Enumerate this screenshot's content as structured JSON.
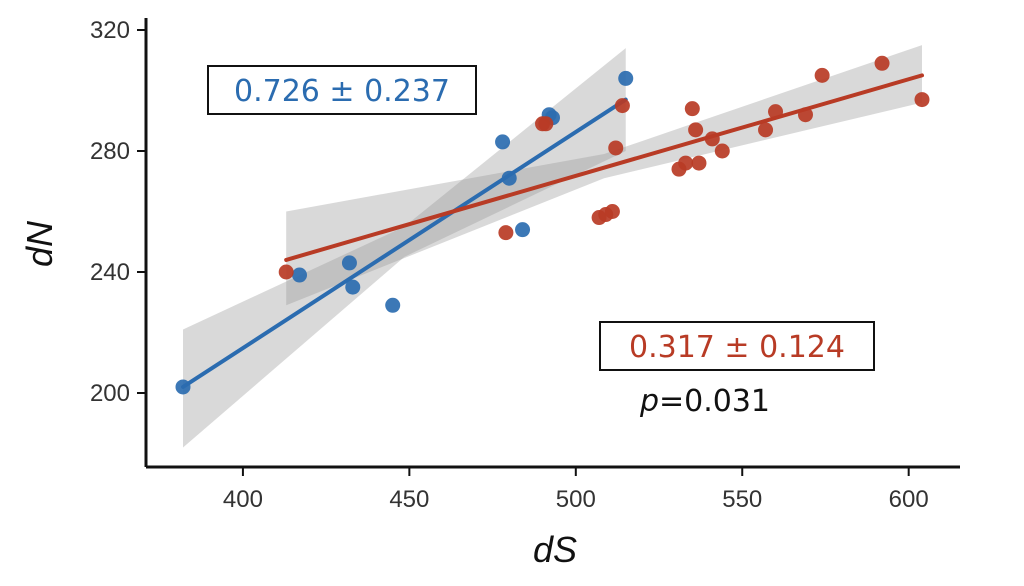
{
  "chart_data": {
    "type": "scatter",
    "xlabel": "dS",
    "ylabel": "dN",
    "xlim": [
      372,
      612
    ],
    "ylim": [
      178,
      326
    ],
    "xticks": [
      400,
      450,
      500,
      550,
      600
    ],
    "yticks": [
      200,
      240,
      280,
      320
    ],
    "grid": false,
    "series": [
      {
        "color": "#2b6cb0",
        "points": [
          [
            382,
            202
          ],
          [
            417,
            239
          ],
          [
            432,
            243
          ],
          [
            433,
            235
          ],
          [
            445,
            229
          ],
          [
            478,
            283
          ],
          [
            480,
            271
          ],
          [
            484,
            254
          ],
          [
            492,
            292
          ],
          [
            493,
            291
          ],
          [
            515,
            304
          ]
        ],
        "fit": {
          "x": [
            382,
            515
          ],
          "y": [
            202,
            297
          ]
        },
        "ci_band": {
          "x": [
            382,
            448.5,
            515
          ],
          "lower": [
            182,
            245,
            280
          ],
          "upper": [
            221,
            255,
            314
          ]
        },
        "annotation": "0.726 ± 0.237"
      },
      {
        "color": "#b83b25",
        "points": [
          [
            413,
            240
          ],
          [
            479,
            253
          ],
          [
            490,
            289
          ],
          [
            491,
            289
          ],
          [
            507,
            258
          ],
          [
            509,
            259
          ],
          [
            511,
            260
          ],
          [
            512,
            281
          ],
          [
            514,
            295
          ],
          [
            531,
            274
          ],
          [
            533,
            276
          ],
          [
            535,
            294
          ],
          [
            536,
            287
          ],
          [
            537,
            276
          ],
          [
            541,
            284
          ],
          [
            544,
            280
          ],
          [
            557,
            287
          ],
          [
            560,
            293
          ],
          [
            569,
            292
          ],
          [
            574,
            305
          ],
          [
            592,
            309
          ],
          [
            604,
            297
          ]
        ],
        "fit": {
          "x": [
            413,
            604
          ],
          "y": [
            244,
            305
          ]
        },
        "ci_band": {
          "x": [
            413,
            508.5,
            604
          ],
          "lower": [
            229,
            271,
            296
          ],
          "upper": [
            260,
            279,
            315
          ]
        },
        "annotation": "0.317 ± 0.124"
      }
    ],
    "p_annotation": {
      "prefix": "p",
      "value": "=0.031"
    }
  }
}
